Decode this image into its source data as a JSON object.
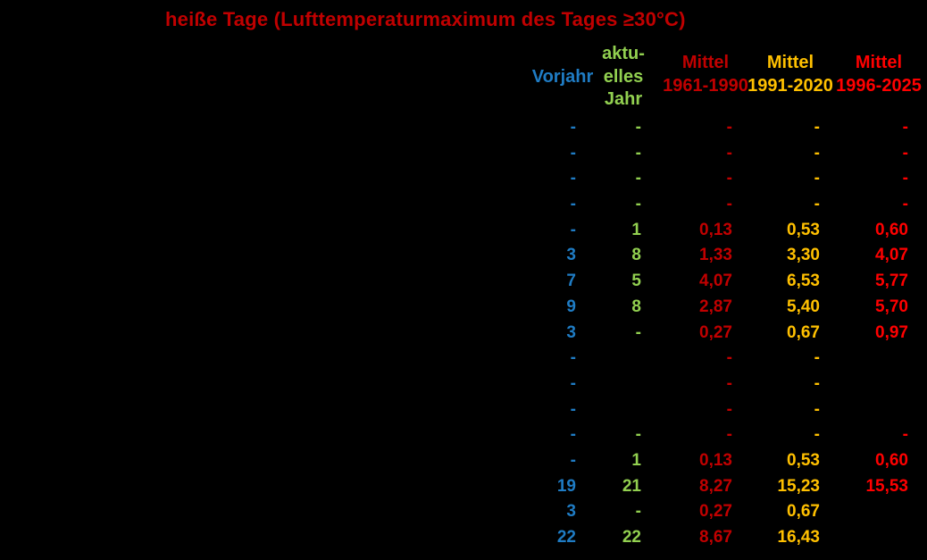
{
  "chart_data": {
    "type": "table",
    "title": "heiße Tage (Lufttemperaturmaximum des Tages ≥30°C)",
    "title_color": "#C00000",
    "background": "#000000",
    "columns": [
      {
        "id": "vorjahr",
        "label": "Vorjahr",
        "label_lines": [
          "Vorjahr"
        ],
        "color": "#1F7CC4"
      },
      {
        "id": "aktuelles-jahr",
        "label": "aktuelles Jahr",
        "label_lines": [
          "aktu-",
          "elles",
          "Jahr"
        ],
        "color": "#92D050"
      },
      {
        "id": "mittel-1961-1990",
        "label": "Mittel 1961-1990",
        "label_lines": [
          "Mittel",
          "1961-1990"
        ],
        "color": "#C00000"
      },
      {
        "id": "mittel-1991-2020",
        "label": "Mittel 1991-2020",
        "label_lines": [
          "Mittel",
          "1991-2020"
        ],
        "color": "#FFC000"
      },
      {
        "id": "mittel-1996-2025",
        "label": "Mittel 1996-2025",
        "label_lines": [
          "Mittel",
          "1996-2025"
        ],
        "color": "#FF0000"
      }
    ],
    "rows": [
      [
        "-",
        "-",
        "-",
        "-",
        "-"
      ],
      [
        "-",
        "-",
        "-",
        "-",
        "-"
      ],
      [
        "-",
        "-",
        "-",
        "-",
        "-"
      ],
      [
        "-",
        "-",
        "-",
        "-",
        "-"
      ],
      [
        "-",
        "1",
        "0,13",
        "0,53",
        "0,60"
      ],
      [
        "3",
        "8",
        "1,33",
        "3,30",
        "4,07"
      ],
      [
        "7",
        "5",
        "4,07",
        "6,53",
        "5,77"
      ],
      [
        "9",
        "8",
        "2,87",
        "5,40",
        "5,70"
      ],
      [
        "3",
        "-",
        "0,27",
        "0,67",
        "0,97"
      ],
      [
        "-",
        "",
        "-",
        "-",
        ""
      ],
      [
        "-",
        "",
        "-",
        "-",
        ""
      ],
      [
        "-",
        "",
        "-",
        "-",
        ""
      ],
      [
        "-",
        "-",
        "-",
        "-",
        "-"
      ],
      [
        "-",
        "1",
        "0,13",
        "0,53",
        "0,60"
      ],
      [
        "19",
        "21",
        "8,27",
        "15,23",
        "15,53"
      ],
      [
        "3",
        "-",
        "0,27",
        "0,67",
        ""
      ],
      [
        "22",
        "22",
        "8,67",
        "16,43",
        ""
      ]
    ]
  }
}
